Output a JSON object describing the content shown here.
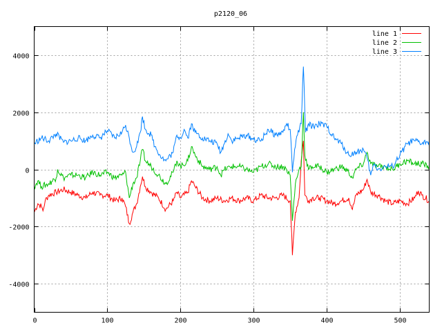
{
  "chart_data": {
    "type": "line",
    "title": "p2120_06",
    "xlabel": "",
    "ylabel": "",
    "xlim": [
      0,
      540
    ],
    "ylim": [
      -5000,
      5000
    ],
    "xticks": [
      0,
      100,
      200,
      300,
      400,
      500
    ],
    "yticks": [
      -4000,
      -2000,
      0,
      2000,
      4000
    ],
    "grid": true,
    "legend_position": "top-right",
    "series": [
      {
        "name": "line 1",
        "color": "#ff0000",
        "points": [
          [
            0,
            -1500
          ],
          [
            5,
            -1200
          ],
          [
            10,
            -1300
          ],
          [
            12,
            -1450
          ],
          [
            15,
            -1100
          ],
          [
            20,
            -900
          ],
          [
            30,
            -800
          ],
          [
            40,
            -700
          ],
          [
            50,
            -800
          ],
          [
            60,
            -900
          ],
          [
            70,
            -1000
          ],
          [
            80,
            -800
          ],
          [
            90,
            -900
          ],
          [
            100,
            -900
          ],
          [
            110,
            -1100
          ],
          [
            120,
            -1000
          ],
          [
            125,
            -1300
          ],
          [
            130,
            -1900
          ],
          [
            135,
            -1500
          ],
          [
            140,
            -1200
          ],
          [
            145,
            -600
          ],
          [
            148,
            -250
          ],
          [
            152,
            -600
          ],
          [
            160,
            -800
          ],
          [
            170,
            -1000
          ],
          [
            180,
            -1400
          ],
          [
            190,
            -1100
          ],
          [
            195,
            -800
          ],
          [
            200,
            -1000
          ],
          [
            210,
            -800
          ],
          [
            215,
            -400
          ],
          [
            220,
            -600
          ],
          [
            230,
            -1000
          ],
          [
            240,
            -1100
          ],
          [
            250,
            -1000
          ],
          [
            260,
            -1100
          ],
          [
            270,
            -1000
          ],
          [
            280,
            -1100
          ],
          [
            290,
            -1000
          ],
          [
            300,
            -1100
          ],
          [
            310,
            -900
          ],
          [
            320,
            -1000
          ],
          [
            330,
            -1000
          ],
          [
            340,
            -900
          ],
          [
            350,
            -1100
          ],
          [
            353,
            -3000
          ],
          [
            357,
            -1500
          ],
          [
            362,
            -1000
          ],
          [
            365,
            300
          ],
          [
            368,
            1000
          ],
          [
            370,
            -900
          ],
          [
            375,
            -1100
          ],
          [
            380,
            -1000
          ],
          [
            390,
            -1000
          ],
          [
            400,
            -1100
          ],
          [
            410,
            -1200
          ],
          [
            420,
            -1100
          ],
          [
            430,
            -1000
          ],
          [
            435,
            -1400
          ],
          [
            440,
            -900
          ],
          [
            450,
            -700
          ],
          [
            455,
            -350
          ],
          [
            460,
            -800
          ],
          [
            470,
            -900
          ],
          [
            480,
            -1100
          ],
          [
            490,
            -1200
          ],
          [
            500,
            -1100
          ],
          [
            510,
            -1200
          ],
          [
            520,
            -1000
          ],
          [
            525,
            -750
          ],
          [
            530,
            -900
          ],
          [
            540,
            -1100
          ]
        ]
      },
      {
        "name": "line 2",
        "color": "#00c000",
        "points": [
          [
            0,
            -600
          ],
          [
            5,
            -400
          ],
          [
            10,
            -600
          ],
          [
            20,
            -500
          ],
          [
            30,
            -300
          ],
          [
            32,
            0
          ],
          [
            40,
            -300
          ],
          [
            50,
            -200
          ],
          [
            60,
            -200
          ],
          [
            70,
            -300
          ],
          [
            80,
            -100
          ],
          [
            90,
            -200
          ],
          [
            100,
            -100
          ],
          [
            110,
            -300
          ],
          [
            120,
            -200
          ],
          [
            125,
            -100
          ],
          [
            130,
            -1000
          ],
          [
            135,
            -500
          ],
          [
            140,
            -300
          ],
          [
            145,
            300
          ],
          [
            148,
            700
          ],
          [
            152,
            300
          ],
          [
            160,
            100
          ],
          [
            170,
            -200
          ],
          [
            180,
            -500
          ],
          [
            190,
            -100
          ],
          [
            195,
            300
          ],
          [
            200,
            100
          ],
          [
            210,
            300
          ],
          [
            215,
            800
          ],
          [
            220,
            500
          ],
          [
            230,
            100
          ],
          [
            240,
            0
          ],
          [
            250,
            100
          ],
          [
            255,
            -200
          ],
          [
            260,
            0
          ],
          [
            270,
            100
          ],
          [
            280,
            100
          ],
          [
            290,
            0
          ],
          [
            300,
            -100
          ],
          [
            310,
            100
          ],
          [
            320,
            200
          ],
          [
            330,
            100
          ],
          [
            340,
            100
          ],
          [
            345,
            0
          ],
          [
            350,
            -200
          ],
          [
            353,
            -1800
          ],
          [
            357,
            -500
          ],
          [
            362,
            0
          ],
          [
            365,
            100
          ],
          [
            368,
            2000
          ],
          [
            370,
            500
          ],
          [
            375,
            0
          ],
          [
            380,
            100
          ],
          [
            390,
            100
          ],
          [
            400,
            -100
          ],
          [
            410,
            0
          ],
          [
            420,
            100
          ],
          [
            430,
            -100
          ],
          [
            435,
            -300
          ],
          [
            440,
            0
          ],
          [
            450,
            200
          ],
          [
            455,
            600
          ],
          [
            460,
            200
          ],
          [
            470,
            100
          ],
          [
            480,
            100
          ],
          [
            490,
            0
          ],
          [
            500,
            200
          ],
          [
            510,
            300
          ],
          [
            520,
            200
          ],
          [
            530,
            200
          ],
          [
            540,
            100
          ]
        ]
      },
      {
        "name": "line 3",
        "color": "#0080ff",
        "points": [
          [
            0,
            900
          ],
          [
            10,
            1100
          ],
          [
            20,
            1000
          ],
          [
            30,
            1250
          ],
          [
            40,
            950
          ],
          [
            50,
            1000
          ],
          [
            60,
            1100
          ],
          [
            70,
            1000
          ],
          [
            80,
            1200
          ],
          [
            90,
            1100
          ],
          [
            100,
            1350
          ],
          [
            110,
            1100
          ],
          [
            120,
            1300
          ],
          [
            125,
            1550
          ],
          [
            130,
            1100
          ],
          [
            135,
            600
          ],
          [
            140,
            800
          ],
          [
            145,
            1300
          ],
          [
            148,
            1850
          ],
          [
            152,
            1400
          ],
          [
            160,
            1200
          ],
          [
            165,
            800
          ],
          [
            175,
            400
          ],
          [
            180,
            300
          ],
          [
            190,
            600
          ],
          [
            195,
            1200
          ],
          [
            200,
            1100
          ],
          [
            205,
            1400
          ],
          [
            210,
            1100
          ],
          [
            215,
            1600
          ],
          [
            220,
            1300
          ],
          [
            230,
            1100
          ],
          [
            240,
            1000
          ],
          [
            250,
            900
          ],
          [
            255,
            600
          ],
          [
            260,
            900
          ],
          [
            265,
            1250
          ],
          [
            270,
            1000
          ],
          [
            280,
            1100
          ],
          [
            290,
            1200
          ],
          [
            300,
            1050
          ],
          [
            310,
            1000
          ],
          [
            320,
            1400
          ],
          [
            330,
            1200
          ],
          [
            340,
            1300
          ],
          [
            345,
            1600
          ],
          [
            350,
            1400
          ],
          [
            353,
            -100
          ],
          [
            356,
            700
          ],
          [
            360,
            1200
          ],
          [
            365,
            1600
          ],
          [
            368,
            3600
          ],
          [
            371,
            1300
          ],
          [
            375,
            1600
          ],
          [
            380,
            1500
          ],
          [
            390,
            1600
          ],
          [
            400,
            1500
          ],
          [
            410,
            1100
          ],
          [
            420,
            900
          ],
          [
            430,
            500
          ],
          [
            440,
            600
          ],
          [
            450,
            700
          ],
          [
            455,
            400
          ],
          [
            460,
            -200
          ],
          [
            465,
            200
          ],
          [
            470,
            0
          ],
          [
            480,
            100
          ],
          [
            490,
            100
          ],
          [
            500,
            500
          ],
          [
            510,
            900
          ],
          [
            520,
            1000
          ],
          [
            530,
            900
          ],
          [
            540,
            1000
          ]
        ]
      }
    ]
  }
}
